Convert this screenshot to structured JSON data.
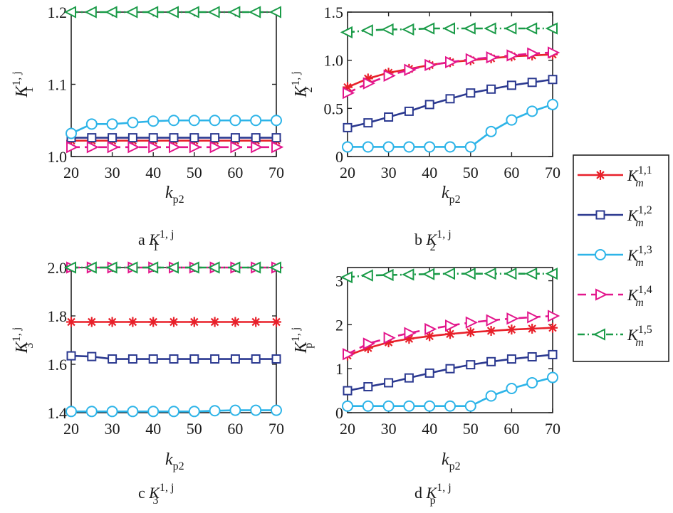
{
  "chart_data": [
    {
      "type": "line",
      "panel": "a",
      "caption": {
        "letter": "a",
        "base": "K",
        "sub": "1",
        "sup": "1, j"
      },
      "ylabel": {
        "base": "K",
        "sub": "1",
        "sup": "1, j"
      },
      "xlabel": {
        "base": "k",
        "sub": "p2"
      },
      "xlim": [
        20,
        70
      ],
      "ylim": [
        1.0,
        1.2
      ],
      "xticks": [
        "20",
        "30",
        "40",
        "50",
        "60",
        "70"
      ],
      "yticks": [
        [
          "1.0",
          1.0
        ],
        [
          "1.1",
          1.1
        ],
        [
          "1.2",
          1.2
        ]
      ],
      "x": [
        20,
        25,
        30,
        35,
        40,
        45,
        50,
        55,
        60,
        65,
        70
      ],
      "series": [
        {
          "key": "m1",
          "values": [
            1.022,
            1.022,
            1.022,
            1.022,
            1.022,
            1.022,
            1.022,
            1.022,
            1.022,
            1.022,
            1.022
          ]
        },
        {
          "key": "m2",
          "values": [
            1.026,
            1.026,
            1.026,
            1.026,
            1.026,
            1.026,
            1.026,
            1.026,
            1.026,
            1.026,
            1.026
          ]
        },
        {
          "key": "m3",
          "values": [
            1.032,
            1.045,
            1.045,
            1.047,
            1.049,
            1.05,
            1.05,
            1.05,
            1.05,
            1.05,
            1.05
          ]
        },
        {
          "key": "m4",
          "values": [
            1.013,
            1.013,
            1.013,
            1.013,
            1.013,
            1.013,
            1.013,
            1.013,
            1.013,
            1.013,
            1.013
          ]
        },
        {
          "key": "m5",
          "values": [
            1.2,
            1.2,
            1.2,
            1.2,
            1.2,
            1.2,
            1.2,
            1.2,
            1.2,
            1.2,
            1.2
          ]
        }
      ]
    },
    {
      "type": "line",
      "panel": "b",
      "caption": {
        "letter": "b",
        "base": "K",
        "sub": "2",
        "sup": "1, j"
      },
      "ylabel": {
        "base": "K",
        "sub": "2",
        "sup": "1, j"
      },
      "xlabel": {
        "base": "k",
        "sub": "p2"
      },
      "xlim": [
        20,
        70
      ],
      "ylim": [
        0,
        1.5
      ],
      "xticks": [
        "20",
        "30",
        "40",
        "50",
        "60",
        "70"
      ],
      "yticks": [
        [
          "0",
          0
        ],
        [
          "0.5",
          0.5
        ],
        [
          "1.0",
          1.0
        ],
        [
          "1.5",
          1.5
        ]
      ],
      "x": [
        20,
        25,
        30,
        35,
        40,
        45,
        50,
        55,
        60,
        65,
        70
      ],
      "series": [
        {
          "key": "m1",
          "values": [
            0.72,
            0.81,
            0.87,
            0.91,
            0.95,
            0.98,
            1.0,
            1.02,
            1.04,
            1.05,
            1.06
          ]
        },
        {
          "key": "m2",
          "values": [
            0.3,
            0.35,
            0.41,
            0.47,
            0.54,
            0.6,
            0.66,
            0.7,
            0.74,
            0.77,
            0.8
          ]
        },
        {
          "key": "m3",
          "values": [
            0.1,
            0.1,
            0.1,
            0.1,
            0.1,
            0.1,
            0.1,
            0.26,
            0.38,
            0.47,
            0.54
          ]
        },
        {
          "key": "m4",
          "values": [
            0.66,
            0.76,
            0.84,
            0.9,
            0.95,
            0.98,
            1.01,
            1.03,
            1.05,
            1.07,
            1.08
          ]
        },
        {
          "key": "m5",
          "values": [
            1.29,
            1.31,
            1.32,
            1.32,
            1.33,
            1.33,
            1.33,
            1.33,
            1.33,
            1.33,
            1.33
          ]
        }
      ]
    },
    {
      "type": "line",
      "panel": "c",
      "caption": {
        "letter": "c",
        "base": "K",
        "sub": "3",
        "sup": "1, j"
      },
      "ylabel": {
        "base": "K",
        "sub": "3",
        "sup": "1, j"
      },
      "xlabel": {
        "base": "k",
        "sub": "p2"
      },
      "xlim": [
        20,
        70
      ],
      "ylim": [
        1.4,
        2.0
      ],
      "xticks": [
        "20",
        "30",
        "40",
        "50",
        "60",
        "70"
      ],
      "yticks": [
        [
          "1.4",
          1.4
        ],
        [
          "1.6",
          1.6
        ],
        [
          "1.8",
          1.8
        ],
        [
          "2.0",
          2.0
        ]
      ],
      "x": [
        20,
        25,
        30,
        35,
        40,
        45,
        50,
        55,
        60,
        65,
        70
      ],
      "series": [
        {
          "key": "m1",
          "values": [
            1.775,
            1.775,
            1.775,
            1.775,
            1.775,
            1.775,
            1.775,
            1.775,
            1.775,
            1.775,
            1.775
          ]
        },
        {
          "key": "m2",
          "values": [
            1.635,
            1.632,
            1.622,
            1.622,
            1.622,
            1.622,
            1.622,
            1.622,
            1.622,
            1.622,
            1.622
          ]
        },
        {
          "key": "m3",
          "values": [
            1.405,
            1.405,
            1.405,
            1.405,
            1.405,
            1.405,
            1.405,
            1.408,
            1.41,
            1.41,
            1.41
          ]
        },
        {
          "key": "m4",
          "values": [
            2.0,
            2.0,
            2.0,
            2.0,
            2.0,
            2.0,
            2.0,
            2.0,
            2.0,
            2.0,
            2.0
          ]
        },
        {
          "key": "m5",
          "values": [
            2.0,
            2.0,
            2.0,
            2.0,
            2.0,
            2.0,
            2.0,
            2.0,
            2.0,
            2.0,
            2.0
          ]
        }
      ]
    },
    {
      "type": "line",
      "panel": "d",
      "caption": {
        "letter": "d",
        "base": "K",
        "sub": "p",
        "sup": "1, j"
      },
      "ylabel": {
        "base": "K",
        "sub": "p",
        "sup": "1, j"
      },
      "xlabel": {
        "base": "k",
        "sub": "p2"
      },
      "xlim": [
        20,
        70
      ],
      "ylim": [
        0,
        3.3
      ],
      "xticks": [
        "20",
        "30",
        "40",
        "50",
        "60",
        "70"
      ],
      "yticks": [
        [
          "0",
          0
        ],
        [
          "1",
          1
        ],
        [
          "2",
          2
        ],
        [
          "3",
          3
        ]
      ],
      "x": [
        20,
        25,
        30,
        35,
        40,
        45,
        50,
        55,
        60,
        65,
        70
      ],
      "series": [
        {
          "key": "m1",
          "values": [
            1.3,
            1.47,
            1.6,
            1.68,
            1.74,
            1.79,
            1.83,
            1.86,
            1.89,
            1.91,
            1.93
          ]
        },
        {
          "key": "m2",
          "values": [
            0.5,
            0.59,
            0.68,
            0.79,
            0.9,
            1.0,
            1.09,
            1.16,
            1.22,
            1.27,
            1.32
          ]
        },
        {
          "key": "m3",
          "values": [
            0.15,
            0.15,
            0.15,
            0.15,
            0.15,
            0.15,
            0.15,
            0.38,
            0.55,
            0.68,
            0.8
          ]
        },
        {
          "key": "m4",
          "values": [
            1.33,
            1.57,
            1.7,
            1.81,
            1.9,
            1.98,
            2.05,
            2.1,
            2.14,
            2.17,
            2.2
          ]
        },
        {
          "key": "m5",
          "values": [
            3.08,
            3.12,
            3.13,
            3.14,
            3.15,
            3.16,
            3.16,
            3.16,
            3.16,
            3.16,
            3.16
          ]
        }
      ]
    }
  ],
  "legend": {
    "placement": "right",
    "entries": [
      {
        "key": "m1",
        "base": "K",
        "sub": "m",
        "sup": "1,1",
        "color": "#e8202a",
        "marker": "asterisk",
        "dash": "solid"
      },
      {
        "key": "m2",
        "base": "K",
        "sub": "m",
        "sup": "1,2",
        "color": "#2b3990",
        "marker": "square",
        "dash": "solid"
      },
      {
        "key": "m3",
        "base": "K",
        "sub": "m",
        "sup": "1,3",
        "color": "#2db4e8",
        "marker": "circle",
        "dash": "solid"
      },
      {
        "key": "m4",
        "base": "K",
        "sub": "m",
        "sup": "1,4",
        "color": "#e3168c",
        "marker": "triangle-right",
        "dash": "dashed"
      },
      {
        "key": "m5",
        "base": "K",
        "sub": "m",
        "sup": "1,5",
        "color": "#1a9b48",
        "marker": "triangle-left",
        "dash": "dashdot"
      }
    ]
  }
}
